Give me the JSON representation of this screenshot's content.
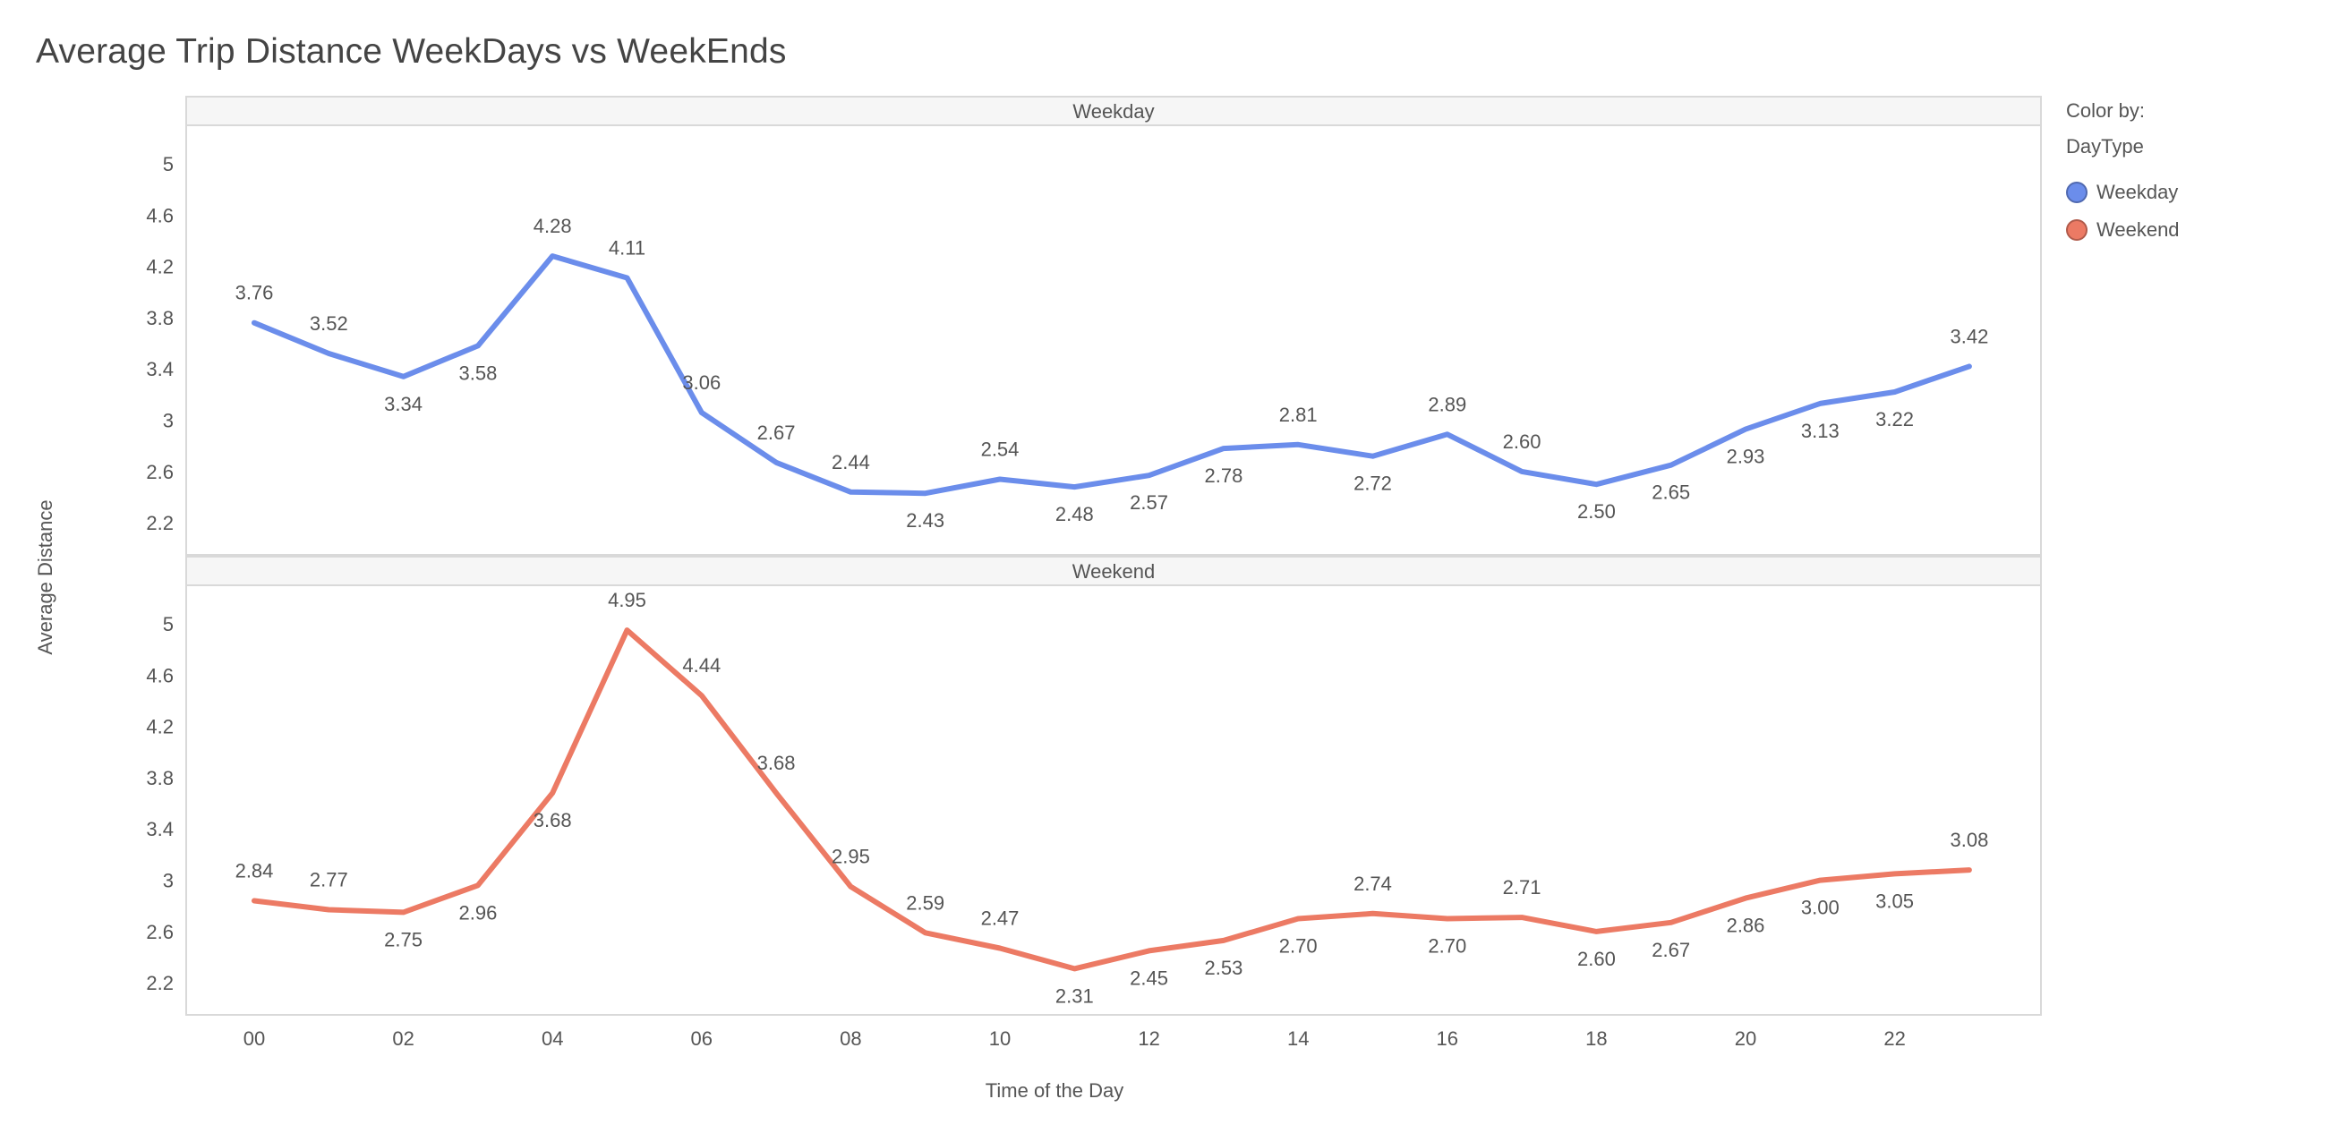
{
  "title": "Average Trip Distance WeekDays vs WeekEnds",
  "legend": {
    "caption_line1": "Color by:",
    "caption_line2": "DayType",
    "items": [
      {
        "label": "Weekday",
        "color": "#6B8DEB"
      },
      {
        "label": "Weekend",
        "color": "#EC7A64"
      }
    ]
  },
  "chart_data": {
    "type": "line",
    "xlabel": "Time of the Day",
    "ylabel": "Average Distance",
    "x": [
      "00",
      "01",
      "02",
      "03",
      "04",
      "05",
      "06",
      "07",
      "08",
      "09",
      "10",
      "11",
      "12",
      "13",
      "14",
      "15",
      "16",
      "17",
      "18",
      "19",
      "20",
      "21",
      "22",
      "23"
    ],
    "x_tick_labels": [
      "00",
      "02",
      "04",
      "06",
      "08",
      "10",
      "12",
      "14",
      "16",
      "18",
      "20",
      "22"
    ],
    "y_ticks": [
      "2.2",
      "2.6",
      "3",
      "3.4",
      "3.8",
      "4.2",
      "4.6",
      "5"
    ],
    "ylim": [
      1.95,
      5.3
    ],
    "legend_position": "right",
    "panels": [
      {
        "name": "Weekday",
        "color": "#6B8DEB",
        "values": [
          3.76,
          3.52,
          3.34,
          3.58,
          4.28,
          4.11,
          3.06,
          2.67,
          2.44,
          2.43,
          2.54,
          2.48,
          2.57,
          2.78,
          2.81,
          2.72,
          2.89,
          2.6,
          2.5,
          2.65,
          2.93,
          3.13,
          3.22,
          3.42
        ],
        "labels": [
          "3.76",
          "3.52",
          "3.34",
          "3.58",
          "4.28",
          "4.11",
          "3.06",
          "2.67",
          "2.44",
          "2.43",
          "2.54",
          "2.48",
          "2.57",
          "2.78",
          "2.81",
          "2.72",
          "2.89",
          "2.60",
          "2.50",
          "2.65",
          "2.93",
          "3.13",
          "3.22",
          "3.42"
        ]
      },
      {
        "name": "Weekend",
        "color": "#EC7A64",
        "values": [
          2.84,
          2.77,
          2.75,
          2.96,
          3.68,
          4.95,
          4.44,
          3.68,
          2.95,
          2.59,
          2.47,
          2.31,
          2.45,
          2.53,
          2.7,
          2.74,
          2.7,
          2.71,
          2.6,
          2.67,
          2.86,
          3.0,
          3.05,
          3.08
        ],
        "labels": [
          "2.84",
          "2.77",
          "2.75",
          "2.96",
          "3.68",
          "4.95",
          "4.44",
          "3.68",
          "2.95",
          "2.59",
          "2.47",
          "2.31",
          "2.45",
          "2.53",
          "2.70",
          "2.74",
          "2.70",
          "2.71",
          "2.60",
          "2.67",
          "2.86",
          "3.00",
          "3.05",
          "3.08"
        ]
      }
    ]
  }
}
